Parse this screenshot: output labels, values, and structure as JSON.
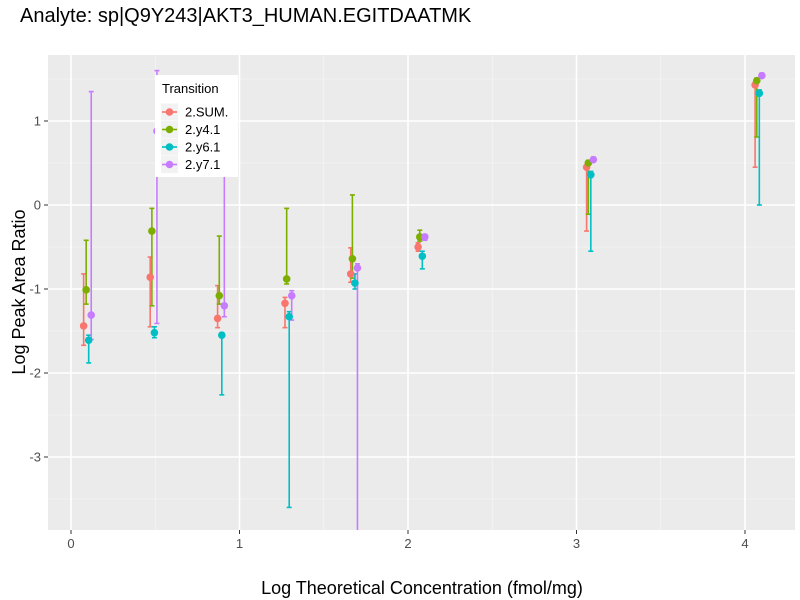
{
  "chart_data": {
    "type": "scatter",
    "title": "Analyte: sp|Q9Y243|AKT3_HUMAN.EGITDAATMK",
    "xlabel": "Log Theoretical Concentration (fmol/mg)",
    "ylabel": "Log Peak Area Ratio",
    "xlim": [
      -0.13,
      4.3
    ],
    "ylim": [
      -3.88,
      1.78
    ],
    "x_ticks": [
      0,
      1,
      2,
      3,
      4
    ],
    "x_tick_labels": [
      "0",
      "1",
      "2",
      "3",
      "4"
    ],
    "y_ticks": [
      1,
      0,
      -1,
      -2,
      -3
    ],
    "y_tick_labels": [
      "1",
      "0",
      "-1",
      "-2",
      "-3"
    ],
    "grid": true,
    "legend": {
      "title": "Transition",
      "placement": "top-left"
    },
    "series": [
      {
        "name": "2.SUM.",
        "color": "#F8766D",
        "points": [
          {
            "x": 0.075,
            "y": -1.44,
            "lo": -1.67,
            "hi": -0.82
          },
          {
            "x": 0.47,
            "y": -0.86,
            "lo": -1.45,
            "hi": -0.62
          },
          {
            "x": 0.87,
            "y": -1.35,
            "lo": -1.46,
            "hi": -0.96
          },
          {
            "x": 1.27,
            "y": -1.17,
            "lo": -1.46,
            "hi": -1.1
          },
          {
            "x": 1.66,
            "y": -0.82,
            "lo": -0.92,
            "hi": -0.51
          },
          {
            "x": 2.06,
            "y": -0.5,
            "lo": -0.55,
            "hi": -0.45
          },
          {
            "x": 3.06,
            "y": 0.45,
            "lo": -0.31,
            "hi": 0.47
          },
          {
            "x": 4.06,
            "y": 1.43,
            "lo": 0.45,
            "hi": 1.46
          }
        ]
      },
      {
        "name": "2.y4.1",
        "color": "#7CAE00",
        "points": [
          {
            "x": 0.09,
            "y": -1.01,
            "lo": -1.18,
            "hi": -0.42
          },
          {
            "x": 0.48,
            "y": -0.31,
            "lo": -1.2,
            "hi": -0.04
          },
          {
            "x": 0.88,
            "y": -1.08,
            "lo": -1.18,
            "hi": -0.37
          },
          {
            "x": 1.28,
            "y": -0.88,
            "lo": -0.94,
            "hi": -0.04
          },
          {
            "x": 1.67,
            "y": -0.64,
            "lo": -0.87,
            "hi": 0.12
          },
          {
            "x": 2.07,
            "y": -0.38,
            "lo": -0.43,
            "hi": -0.3
          },
          {
            "x": 3.07,
            "y": 0.5,
            "lo": -0.11,
            "hi": 0.53
          },
          {
            "x": 4.07,
            "y": 1.48,
            "lo": 0.81,
            "hi": 1.51
          }
        ]
      },
      {
        "name": "2.y6.1",
        "color": "#00BFC4",
        "points": [
          {
            "x": 0.105,
            "y": -1.61,
            "lo": -1.88,
            "hi": -1.55
          },
          {
            "x": 0.495,
            "y": -1.52,
            "lo": -1.58,
            "hi": -1.45
          },
          {
            "x": 0.895,
            "y": -1.55,
            "lo": -2.26,
            "hi": -1.52
          },
          {
            "x": 1.295,
            "y": -1.33,
            "lo": -3.6,
            "hi": -1.27
          },
          {
            "x": 1.685,
            "y": -0.93,
            "lo": -1.0,
            "hi": -0.82
          },
          {
            "x": 2.085,
            "y": -0.61,
            "lo": -0.76,
            "hi": -0.55
          },
          {
            "x": 3.085,
            "y": 0.36,
            "lo": -0.55,
            "hi": 0.4
          },
          {
            "x": 4.085,
            "y": 1.33,
            "lo": 0.0,
            "hi": 1.37
          }
        ]
      },
      {
        "name": "2.y7.1",
        "color": "#C77CFF",
        "points": [
          {
            "x": 0.12,
            "y": -1.31,
            "lo": -1.6,
            "hi": 1.35
          },
          {
            "x": 0.51,
            "y": 0.88,
            "lo": -1.41,
            "hi": 1.6
          },
          {
            "x": 0.91,
            "y": -1.2,
            "lo": -1.33,
            "hi": 0.5
          },
          {
            "x": 1.31,
            "y": -1.08,
            "lo": -1.37,
            "hi": -1.02
          },
          {
            "x": 1.7,
            "y": -0.75,
            "lo": -4.0,
            "hi": -0.7
          },
          {
            "x": 2.1,
            "y": -0.38,
            "lo": -0.42,
            "hi": -0.35
          },
          {
            "x": 3.1,
            "y": 0.54,
            "lo": 0.52,
            "hi": 0.57
          },
          {
            "x": 4.1,
            "y": 1.54,
            "lo": 1.52,
            "hi": 1.57
          }
        ]
      }
    ]
  }
}
